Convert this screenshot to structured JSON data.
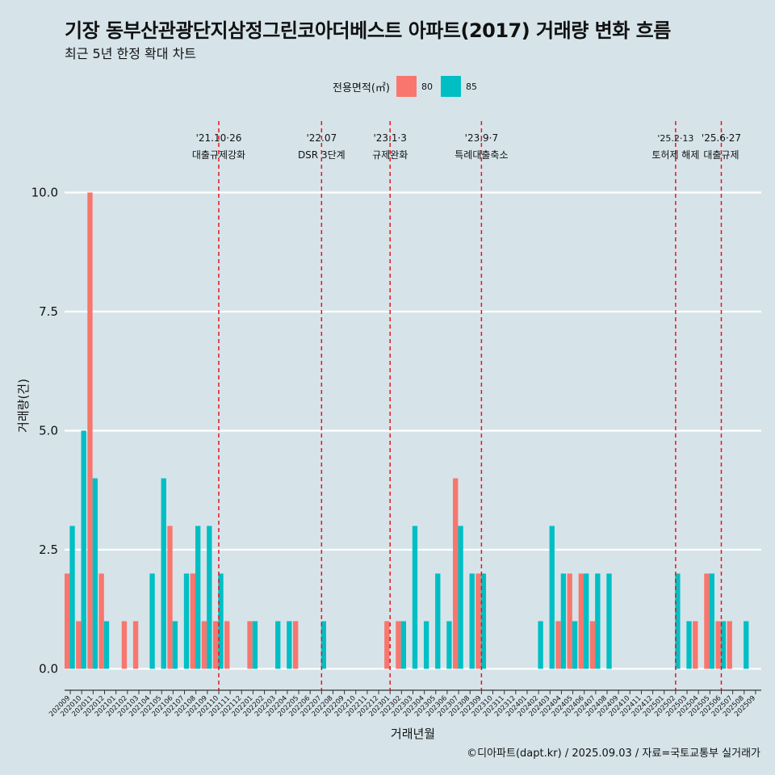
{
  "title": "기장 동부산관광단지삼정그린코아더베스트 아파트(2017) 거래량 변화 흐름",
  "subtitle": "최근 5년 한정 확대 차트",
  "caption": "©디아파트(dapt.kr) / 2025.09.03 / 자료=국토교통부 실거래가",
  "chart_data": {
    "type": "bar",
    "xlabel": "거래년월",
    "ylabel": "거래량(건)",
    "ylim": [
      -0.45,
      11.5
    ],
    "yticks": [
      0.0,
      2.5,
      5.0,
      7.5,
      10.0
    ],
    "ytick_labels": [
      "0.0",
      "2.5",
      "5.0",
      "7.5",
      "10.0"
    ],
    "grid": "horizontal",
    "legend": {
      "title": "전용면적(㎡)",
      "position": "top"
    },
    "colors": {
      "80": "#f8766d",
      "85": "#00bfc4"
    },
    "categories": [
      "202009",
      "202010",
      "202011",
      "202012",
      "202101",
      "202102",
      "202103",
      "202104",
      "202105",
      "202106",
      "202107",
      "202108",
      "202109",
      "202110",
      "202111",
      "202112",
      "202201",
      "202202",
      "202203",
      "202204",
      "202205",
      "202206",
      "202207",
      "202208",
      "202209",
      "202210",
      "202211",
      "202212",
      "202301",
      "202302",
      "202303",
      "202304",
      "202305",
      "202306",
      "202307",
      "202308",
      "202309",
      "202310",
      "202311",
      "202312",
      "202401",
      "202402",
      "202403",
      "202404",
      "202405",
      "202406",
      "202407",
      "202408",
      "202409",
      "202410",
      "202411",
      "202412",
      "202501",
      "202502",
      "202503",
      "202504",
      "202505",
      "202506",
      "202507",
      "202508",
      "202509"
    ],
    "series": [
      {
        "name": "80",
        "values": [
          2,
          1,
          10,
          2,
          0,
          1,
          1,
          0,
          0,
          3,
          0,
          2,
          1,
          1,
          1,
          0,
          1,
          0,
          0,
          0,
          1,
          0,
          0,
          0,
          0,
          0,
          0,
          0,
          1,
          1,
          0,
          0,
          0,
          0,
          4,
          0,
          2,
          0,
          0,
          0,
          0,
          0,
          0,
          1,
          2,
          2,
          1,
          0,
          0,
          0,
          0,
          0,
          0,
          0,
          0,
          1,
          2,
          1,
          1,
          0,
          0
        ]
      },
      {
        "name": "85",
        "values": [
          3,
          5,
          4,
          1,
          0,
          0,
          0,
          2,
          4,
          1,
          2,
          3,
          3,
          2,
          0,
          0,
          1,
          0,
          1,
          1,
          0,
          0,
          1,
          0,
          0,
          0,
          0,
          0,
          0,
          1,
          3,
          1,
          2,
          1,
          3,
          2,
          2,
          0,
          0,
          0,
          0,
          1,
          3,
          2,
          1,
          2,
          2,
          2,
          0,
          0,
          0,
          0,
          0,
          2,
          1,
          0,
          2,
          1,
          0,
          1,
          0
        ]
      }
    ],
    "events": [
      {
        "x": "202110",
        "date": "'21.10·26",
        "label": "대출규제강화"
      },
      {
        "x": "202207",
        "date": "'22.07",
        "label": "DSR 3단계"
      },
      {
        "x": "202301",
        "date": "'23.1·3",
        "label": "규제완화"
      },
      {
        "x": "202309",
        "date": "'23.9·7",
        "label": "특례대출축소"
      },
      {
        "x": "202502",
        "date": "'25.2·13",
        "label": "토허제 해제"
      },
      {
        "x": "202506",
        "date": "'25.6·27",
        "label": "대출규제"
      }
    ]
  }
}
